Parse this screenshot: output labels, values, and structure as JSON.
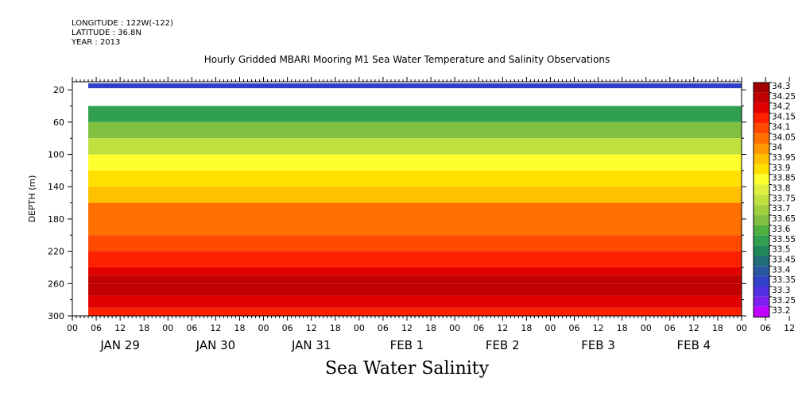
{
  "header": {
    "longitude": "LONGITUDE : 122W(-122)",
    "latitude": "LATITUDE : 36.8N",
    "year": "YEAR : 2013"
  },
  "chart_data": {
    "type": "heatmap",
    "title": "Hourly Gridded MBARI Mooring M1 Sea Water Temperature and Salinity Observations",
    "subtitle": "Sea Water Salinity",
    "ylabel": "DEPTH (m)",
    "y_ticks": [
      20,
      60,
      100,
      140,
      180,
      220,
      260,
      300
    ],
    "ylim": [
      300,
      10
    ],
    "x_hour_ticks": [
      "00",
      "06",
      "12",
      "18",
      "00",
      "06",
      "12",
      "18",
      "00",
      "06",
      "12",
      "18",
      "00",
      "06",
      "12",
      "18",
      "00",
      "06",
      "12",
      "18",
      "00",
      "06",
      "12",
      "18",
      "00",
      "06",
      "12",
      "18",
      "00",
      "06",
      "12",
      "18"
    ],
    "x_day_labels": [
      "JAN 29",
      "JAN 30",
      "JAN 31",
      "FEB  1",
      "FEB  2",
      "FEB  3",
      "FEB  4"
    ],
    "x_range_hours": [
      0,
      168
    ],
    "data_start_hour": 4,
    "colorbar_levels": [
      "34.3",
      "34.25",
      "34.2",
      "34.15",
      "34.1",
      "34.05",
      "34",
      "33.95",
      "33.9",
      "33.85",
      "33.8",
      "33.75",
      "33.7",
      "33.65",
      "33.6",
      "33.55",
      "33.5",
      "33.45",
      "33.4",
      "33.35",
      "33.3",
      "33.25",
      "33.2"
    ],
    "colorbar_colors": [
      "#a00000",
      "#c00000",
      "#e00000",
      "#ff2000",
      "#ff4800",
      "#ff7000",
      "#ff9800",
      "#ffc000",
      "#ffe000",
      "#ffff30",
      "#e0f040",
      "#c0e040",
      "#a0d040",
      "#80c040",
      "#50b040",
      "#30a050",
      "#208858",
      "#206c78",
      "#2858a0",
      "#3040c8",
      "#5030e0",
      "#8020f0",
      "#c000ff"
    ],
    "surface_salinity": 33.35,
    "profile": [
      {
        "depth": 40,
        "salinity": 33.55
      },
      {
        "depth": 60,
        "salinity": 33.65
      },
      {
        "depth": 80,
        "salinity": 33.75
      },
      {
        "depth": 100,
        "salinity": 33.85
      },
      {
        "depth": 120,
        "salinity": 33.9
      },
      {
        "depth": 140,
        "salinity": 33.95
      },
      {
        "depth": 160,
        "salinity": 34.05
      },
      {
        "depth": 180,
        "salinity": 34.05
      },
      {
        "depth": 200,
        "salinity": 34.1
      },
      {
        "depth": 220,
        "salinity": 34.15
      },
      {
        "depth": 240,
        "salinity": 34.2
      },
      {
        "depth": 250,
        "salinity": 34.25
      },
      {
        "depth": 260,
        "salinity": 34.25
      },
      {
        "depth": 275,
        "salinity": 34.2
      },
      {
        "depth": 290,
        "salinity": 34.15
      },
      {
        "depth": 300,
        "salinity": 34.1
      }
    ]
  }
}
